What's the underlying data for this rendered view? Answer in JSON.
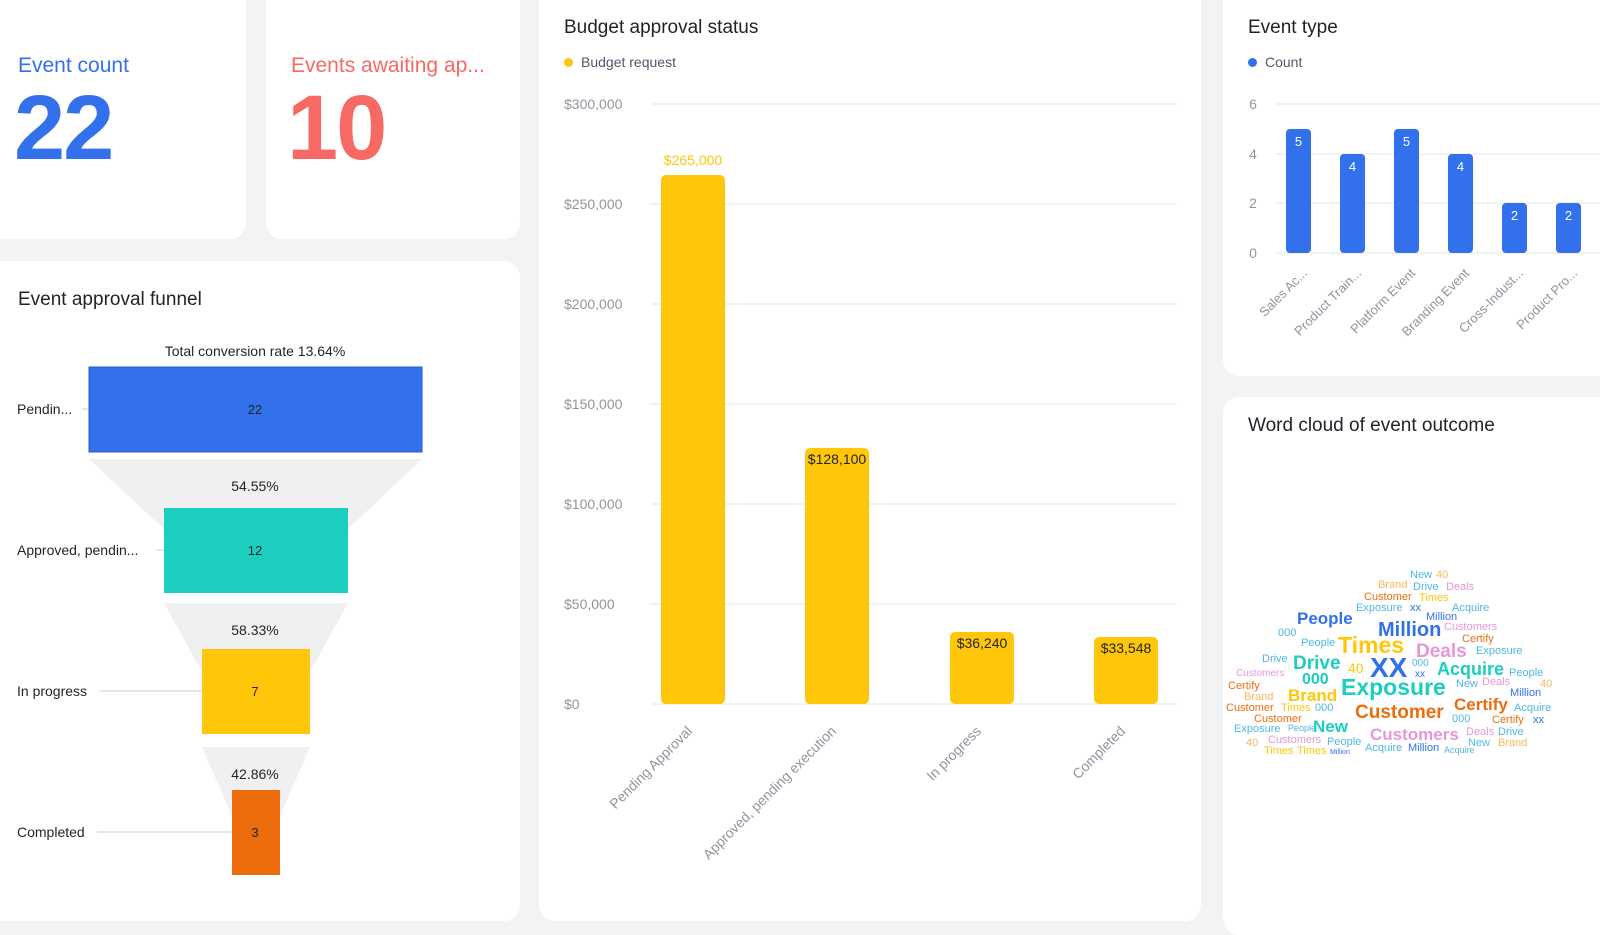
{
  "colors": {
    "blue": "#3370eb",
    "red": "#f76964",
    "teal": "#1bcebf",
    "yellow": "#ffc60a",
    "orange": "#ed6d0c",
    "grid": "#e5e6eb",
    "axis_text": "#8f959e"
  },
  "kpis": {
    "event_count": {
      "label": "Event count",
      "value": "22"
    },
    "awaiting": {
      "label": "Events awaiting ap...",
      "value": "10"
    }
  },
  "funnel": {
    "title": "Event approval funnel",
    "total_label": "Total conversion rate 13.64%",
    "stages": [
      {
        "label": "Pendin...",
        "value": "22",
        "color": "#3370eb"
      },
      {
        "label": "Approved, pendin...",
        "value": "12",
        "color": "#1bcebf"
      },
      {
        "label": "In progress",
        "value": "7",
        "color": "#ffc60a"
      },
      {
        "label": "Completed",
        "value": "3",
        "color": "#ed6d0c"
      }
    ],
    "rates": [
      "54.55%",
      "58.33%",
      "42.86%"
    ]
  },
  "budget": {
    "title": "Budget approval status",
    "legend": "Budget request",
    "y_ticks": [
      "$300,000",
      "$250,000",
      "$200,000",
      "$150,000",
      "$100,000",
      "$50,000",
      "$0"
    ],
    "data_labels": [
      "$265,000",
      "$128,100",
      "$36,240",
      "$33,548"
    ]
  },
  "event_type": {
    "title": "Event type",
    "legend": "Count",
    "y_ticks": [
      "6",
      "4",
      "2",
      "0"
    ],
    "data_labels": [
      "5",
      "4",
      "5",
      "4",
      "2",
      "2"
    ]
  },
  "word_cloud": {
    "title": "Word cloud of event outcome",
    "words": [
      {
        "t": "New",
        "c": "#4fb6e8",
        "s": 11,
        "x": 1410,
        "y": 570
      },
      {
        "t": "40",
        "c": "#f8b75f",
        "s": 11,
        "x": 1436,
        "y": 570
      },
      {
        "t": "Brand",
        "c": "#f8b75f",
        "s": 11,
        "x": 1378,
        "y": 580
      },
      {
        "t": "Drive",
        "c": "#4fb6e8",
        "s": 11,
        "x": 1413,
        "y": 582
      },
      {
        "t": "Deals",
        "c": "#e797d7",
        "s": 11,
        "x": 1446,
        "y": 582
      },
      {
        "t": "Customer",
        "c": "#ed6d0c",
        "s": 11,
        "x": 1364,
        "y": 592
      },
      {
        "t": "Times",
        "c": "#ffc60a",
        "s": 11,
        "x": 1419,
        "y": 593
      },
      {
        "t": "Exposure",
        "c": "#4fb6e8",
        "s": 11,
        "x": 1356,
        "y": 603
      },
      {
        "t": "xx",
        "c": "#3370eb",
        "s": 11,
        "x": 1410,
        "y": 603
      },
      {
        "t": "Acquire",
        "c": "#4fb6e8",
        "s": 11,
        "x": 1452,
        "y": 603
      },
      {
        "t": "Million",
        "c": "#3370eb",
        "s": 11,
        "x": 1426,
        "y": 612
      },
      {
        "t": "People",
        "c": "#3370eb",
        "s": 17,
        "x": 1297,
        "y": 610
      },
      {
        "t": "000",
        "c": "#4fb6e8",
        "s": 11,
        "x": 1278,
        "y": 628
      },
      {
        "t": "Customers",
        "c": "#e797d7",
        "s": 11,
        "x": 1444,
        "y": 622
      },
      {
        "t": "Million",
        "c": "#3370eb",
        "s": 20,
        "x": 1378,
        "y": 620
      },
      {
        "t": "People",
        "c": "#4fb6e8",
        "s": 11,
        "x": 1301,
        "y": 638
      },
      {
        "t": "Certify",
        "c": "#ed6d0c",
        "s": 11,
        "x": 1462,
        "y": 634
      },
      {
        "t": "Times",
        "c": "#ffc60a",
        "s": 23,
        "x": 1338,
        "y": 634
      },
      {
        "t": "Deals",
        "c": "#e797d7",
        "s": 19,
        "x": 1416,
        "y": 642
      },
      {
        "t": "Exposure",
        "c": "#4fb6e8",
        "s": 11,
        "x": 1476,
        "y": 646
      },
      {
        "t": "Drive",
        "c": "#4fb6e8",
        "s": 11,
        "x": 1262,
        "y": 654
      },
      {
        "t": "Drive",
        "c": "#1bcebf",
        "s": 19,
        "x": 1293,
        "y": 654
      },
      {
        "t": "40",
        "c": "#ffc60a",
        "s": 14,
        "x": 1348,
        "y": 661
      },
      {
        "t": "XX",
        "c": "#3370eb",
        "s": 28,
        "x": 1370,
        "y": 654
      },
      {
        "t": "000",
        "c": "#4fb6e8",
        "s": 10,
        "x": 1412,
        "y": 659
      },
      {
        "t": "Acquire",
        "c": "#1bcebf",
        "s": 18,
        "x": 1437,
        "y": 660
      },
      {
        "t": "Customers",
        "c": "#e797d7",
        "s": 10,
        "x": 1236,
        "y": 669
      },
      {
        "t": "People",
        "c": "#4fb6e8",
        "s": 11,
        "x": 1509,
        "y": 668
      },
      {
        "t": "000",
        "c": "#1bcebf",
        "s": 16,
        "x": 1302,
        "y": 672
      },
      {
        "t": "xx",
        "c": "#3370eb",
        "s": 10,
        "x": 1415,
        "y": 670
      },
      {
        "t": "Certify",
        "c": "#ed6d0c",
        "s": 11,
        "x": 1228,
        "y": 681
      },
      {
        "t": "New",
        "c": "#4fb6e8",
        "s": 11,
        "x": 1456,
        "y": 679
      },
      {
        "t": "Deals",
        "c": "#e797d7",
        "s": 11,
        "x": 1482,
        "y": 677
      },
      {
        "t": "40",
        "c": "#f8b75f",
        "s": 11,
        "x": 1540,
        "y": 679
      },
      {
        "t": "Exposure",
        "c": "#1bcebf",
        "s": 23,
        "x": 1341,
        "y": 676
      },
      {
        "t": "Brand",
        "c": "#f8b75f",
        "s": 11,
        "x": 1244,
        "y": 692
      },
      {
        "t": "Brand",
        "c": "#ffc60a",
        "s": 17,
        "x": 1288,
        "y": 687
      },
      {
        "t": "Million",
        "c": "#3370eb",
        "s": 11,
        "x": 1510,
        "y": 688
      },
      {
        "t": "Certify",
        "c": "#ed6d0c",
        "s": 17,
        "x": 1454,
        "y": 696
      },
      {
        "t": "Customer",
        "c": "#ed6d0c",
        "s": 11,
        "x": 1226,
        "y": 703
      },
      {
        "t": "Times",
        "c": "#ffc60a",
        "s": 11,
        "x": 1281,
        "y": 703
      },
      {
        "t": "000",
        "c": "#4fb6e8",
        "s": 11,
        "x": 1315,
        "y": 703
      },
      {
        "t": "Acquire",
        "c": "#4fb6e8",
        "s": 11,
        "x": 1514,
        "y": 703
      },
      {
        "t": "Customer",
        "c": "#ed6d0c",
        "s": 19,
        "x": 1355,
        "y": 703
      },
      {
        "t": "Customer",
        "c": "#ed6d0c",
        "s": 11,
        "x": 1254,
        "y": 714
      },
      {
        "t": "000",
        "c": "#4fb6e8",
        "s": 11,
        "x": 1452,
        "y": 714
      },
      {
        "t": "Certify",
        "c": "#ed6d0c",
        "s": 11,
        "x": 1492,
        "y": 715
      },
      {
        "t": "xx",
        "c": "#3370eb",
        "s": 11,
        "x": 1533,
        "y": 715
      },
      {
        "t": "Exposure",
        "c": "#4fb6e8",
        "s": 11,
        "x": 1234,
        "y": 724
      },
      {
        "t": "People",
        "c": "#4fb6e8",
        "s": 9,
        "x": 1288,
        "y": 724
      },
      {
        "t": "New",
        "c": "#1bcebf",
        "s": 17,
        "x": 1313,
        "y": 718
      },
      {
        "t": "Deals",
        "c": "#e797d7",
        "s": 11,
        "x": 1466,
        "y": 727
      },
      {
        "t": "Drive",
        "c": "#4fb6e8",
        "s": 11,
        "x": 1498,
        "y": 727
      },
      {
        "t": "Customers",
        "c": "#e797d7",
        "s": 17,
        "x": 1370,
        "y": 726
      },
      {
        "t": "40",
        "c": "#f8b75f",
        "s": 11,
        "x": 1246,
        "y": 738
      },
      {
        "t": "Customers",
        "c": "#e797d7",
        "s": 11,
        "x": 1268,
        "y": 735
      },
      {
        "t": "People",
        "c": "#4fb6e8",
        "s": 11,
        "x": 1327,
        "y": 737
      },
      {
        "t": "New",
        "c": "#4fb6e8",
        "s": 11,
        "x": 1468,
        "y": 738
      },
      {
        "t": "Brand",
        "c": "#f8b75f",
        "s": 11,
        "x": 1498,
        "y": 738
      },
      {
        "t": "Acquire",
        "c": "#4fb6e8",
        "s": 11,
        "x": 1365,
        "y": 743
      },
      {
        "t": "Million",
        "c": "#3370eb",
        "s": 11,
        "x": 1408,
        "y": 743
      },
      {
        "t": "Acquire",
        "c": "#4fb6e8",
        "s": 9,
        "x": 1444,
        "y": 746
      },
      {
        "t": "Times",
        "c": "#ffc60a",
        "s": 11,
        "x": 1264,
        "y": 746
      },
      {
        "t": "Times",
        "c": "#ffc60a",
        "s": 11,
        "x": 1297,
        "y": 746
      },
      {
        "t": "Million",
        "c": "#3370eb",
        "s": 7,
        "x": 1330,
        "y": 749
      }
    ]
  }
}
